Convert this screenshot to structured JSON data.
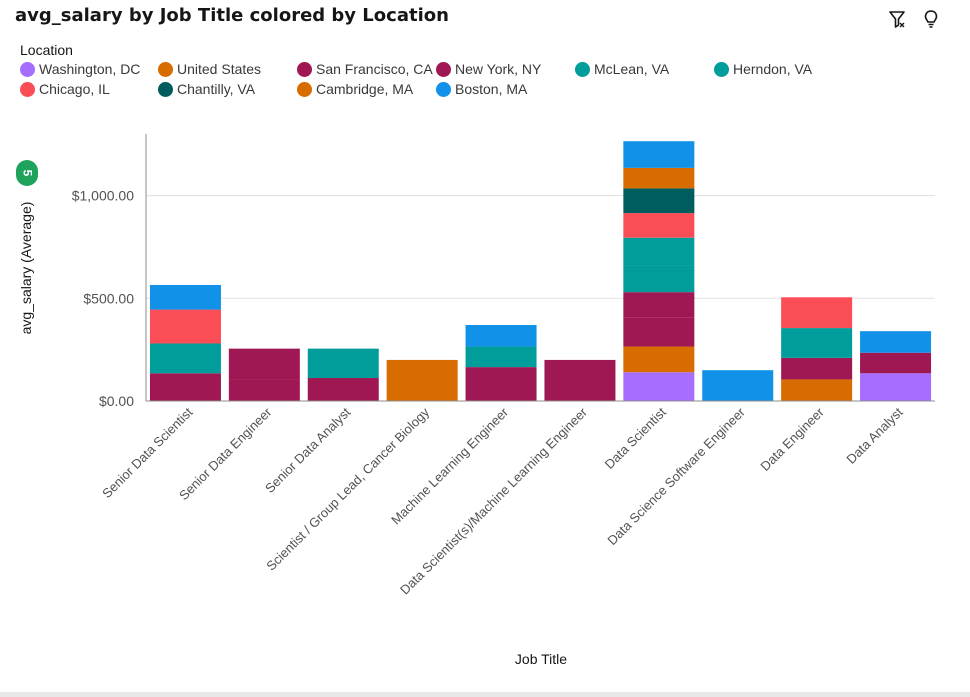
{
  "header": {
    "title": "avg_salary by Job Title colored by Location",
    "filter_icon": "filter-icon",
    "insight_icon": "lightbulb-icon"
  },
  "legend": {
    "title": "Location",
    "items": [
      {
        "label": "Washington, DC",
        "color": "#a56eff"
      },
      {
        "label": "United States",
        "color": "#d96c00"
      },
      {
        "label": "San Francisco, CA",
        "color": "#9f1853"
      },
      {
        "label": "New York, NY",
        "color": "#9f1853"
      },
      {
        "label": "McLean, VA",
        "color": "#009d9a"
      },
      {
        "label": "Herndon, VA",
        "color": "#009d9a"
      },
      {
        "label": "Chicago, IL",
        "color": "#fa4d56"
      },
      {
        "label": "Chantilly, VA",
        "color": "#005d5d"
      },
      {
        "label": "Cambridge, MA",
        "color": "#d96c00"
      },
      {
        "label": "Boston, MA",
        "color": "#1192e8"
      }
    ]
  },
  "badge": "5",
  "chart_data": {
    "type": "bar",
    "stacked": true,
    "xlabel": "Job Title",
    "ylabel": "avg_salary (Average)",
    "ylim": [
      0,
      1300
    ],
    "yticks": [
      0,
      500,
      1000
    ],
    "ytick_labels": [
      "$0.00",
      "$500.00",
      "$1,000.00"
    ],
    "grid": true,
    "categories": [
      "Senior Data Scientist",
      "Senior Data Engineer",
      "Senior Data Analyst",
      "Scientist / Group Lead, Cancer Biology",
      "Machine Learning Engineer",
      "Data Scientist(s)/Machine Learning Engineer",
      "Data Scientist",
      "Data Science Software Engineer",
      "Data Engineer",
      "Data Analyst"
    ],
    "series": [
      {
        "name": "Washington, DC",
        "color": "#a56eff",
        "values": [
          0,
          0,
          0,
          0,
          0,
          0,
          140,
          0,
          0,
          135
        ]
      },
      {
        "name": "United States",
        "color": "#d96c00",
        "values": [
          0,
          0,
          0,
          200,
          0,
          0,
          125,
          0,
          105,
          0
        ]
      },
      {
        "name": "San Francisco, CA",
        "color": "#9f1853",
        "values": [
          135,
          105,
          112,
          0,
          165,
          200,
          140,
          0,
          105,
          100
        ]
      },
      {
        "name": "New York, NY",
        "color": "#9f1853",
        "values": [
          0,
          150,
          0,
          0,
          0,
          0,
          125,
          0,
          0,
          0
        ]
      },
      {
        "name": "McLean, VA",
        "color": "#009d9a",
        "values": [
          145,
          0,
          143,
          0,
          100,
          0,
          130,
          0,
          145,
          0
        ]
      },
      {
        "name": "Herndon, VA",
        "color": "#009d9a",
        "values": [
          0,
          0,
          0,
          0,
          0,
          0,
          135,
          0,
          0,
          0
        ]
      },
      {
        "name": "Chicago, IL",
        "color": "#fa4d56",
        "values": [
          165,
          0,
          0,
          0,
          0,
          0,
          120,
          0,
          150,
          0
        ]
      },
      {
        "name": "Chantilly, VA",
        "color": "#005d5d",
        "values": [
          0,
          0,
          0,
          0,
          0,
          0,
          120,
          0,
          0,
          0
        ]
      },
      {
        "name": "Cambridge, MA",
        "color": "#d96c00",
        "values": [
          0,
          0,
          0,
          0,
          0,
          0,
          100,
          0,
          0,
          0
        ]
      },
      {
        "name": "Boston, MA",
        "color": "#1192e8",
        "values": [
          120,
          0,
          0,
          0,
          105,
          0,
          130,
          150,
          0,
          105
        ]
      }
    ]
  }
}
